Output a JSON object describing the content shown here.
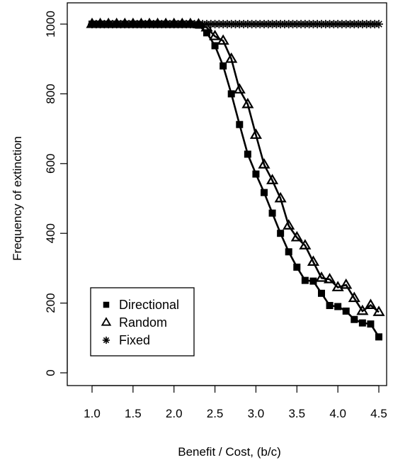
{
  "chart_data": {
    "type": "line",
    "title": "",
    "xlabel": "Benefit / Cost, (b/c)",
    "ylabel": "Frequency of extinction",
    "xlim": [
      0.95,
      4.55
    ],
    "ylim": [
      0,
      1000
    ],
    "x_ticks": [
      1.0,
      1.5,
      2.0,
      2.5,
      3.0,
      3.5,
      4.0,
      4.5
    ],
    "x_tick_labels": [
      "1.0",
      "1.5",
      "2.0",
      "2.5",
      "3.0",
      "3.5",
      "4.0",
      "4.5"
    ],
    "y_ticks": [
      0,
      200,
      400,
      600,
      800,
      1000
    ],
    "y_tick_labels": [
      "0",
      "200",
      "400",
      "600",
      "800",
      "1000"
    ],
    "grid": false,
    "legend_position": "bottom-left",
    "series": [
      {
        "name": "Directional",
        "marker": "filled-square",
        "x": [
          1.0,
          1.1,
          1.2,
          1.3,
          1.4,
          1.5,
          1.6,
          1.7,
          1.8,
          1.9,
          2.0,
          2.1,
          2.2,
          2.3,
          2.4,
          2.5,
          2.6,
          2.7,
          2.8,
          2.9,
          3.0,
          3.1,
          3.2,
          3.3,
          3.4,
          3.5,
          3.6,
          3.7,
          3.8,
          3.9,
          4.0,
          4.1,
          4.2,
          4.3,
          4.4,
          4.5
        ],
        "values": [
          1000,
          1000,
          1000,
          1000,
          1000,
          1000,
          1000,
          1000,
          1000,
          1000,
          1000,
          1000,
          1000,
          997,
          975,
          938,
          880,
          800,
          712,
          627,
          570,
          517,
          458,
          400,
          347,
          303,
          265,
          263,
          228,
          193,
          190,
          177,
          153,
          143,
          140,
          103
        ]
      },
      {
        "name": "Random",
        "marker": "open-triangle",
        "x": [
          1.0,
          1.1,
          1.2,
          1.3,
          1.4,
          1.5,
          1.6,
          1.7,
          1.8,
          1.9,
          2.0,
          2.1,
          2.2,
          2.3,
          2.4,
          2.5,
          2.6,
          2.7,
          2.8,
          2.9,
          3.0,
          3.1,
          3.2,
          3.3,
          3.4,
          3.5,
          3.6,
          3.7,
          3.8,
          3.9,
          4.0,
          4.1,
          4.2,
          4.3,
          4.4,
          4.5
        ],
        "values": [
          1000,
          1000,
          1000,
          1000,
          1000,
          1000,
          1000,
          1000,
          1000,
          1000,
          1000,
          1000,
          1000,
          999,
          990,
          965,
          952,
          900,
          812,
          770,
          682,
          597,
          552,
          500,
          422,
          388,
          365,
          318,
          272,
          268,
          245,
          252,
          214,
          177,
          194,
          174
        ]
      },
      {
        "name": "Fixed",
        "marker": "asterisk",
        "x": [
          1.0,
          1.05,
          1.1,
          1.15,
          1.2,
          1.25,
          1.3,
          1.35,
          1.4,
          1.45,
          1.5,
          1.55,
          1.6,
          1.65,
          1.7,
          1.75,
          1.8,
          1.85,
          1.9,
          1.95,
          2.0,
          2.05,
          2.1,
          2.15,
          2.2,
          2.25,
          2.3,
          2.35,
          2.4,
          2.45,
          2.5,
          2.55,
          2.6,
          2.65,
          2.7,
          2.75,
          2.8,
          2.85,
          2.9,
          2.95,
          3.0,
          3.05,
          3.1,
          3.15,
          3.2,
          3.25,
          3.3,
          3.35,
          3.4,
          3.45,
          3.5,
          3.55,
          3.6,
          3.65,
          3.7,
          3.75,
          3.8,
          3.85,
          3.9,
          3.95,
          4.0,
          4.05,
          4.1,
          4.15,
          4.2,
          4.25,
          4.3,
          4.35,
          4.4,
          4.45,
          4.5
        ],
        "values": [
          1000,
          1000,
          1000,
          1000,
          1000,
          1000,
          1000,
          1000,
          1000,
          1000,
          1000,
          1000,
          1000,
          1000,
          1000,
          1000,
          1000,
          1000,
          1000,
          1000,
          1000,
          1000,
          1000,
          1000,
          1000,
          1000,
          1000,
          1000,
          1000,
          1000,
          1000,
          1000,
          1000,
          1000,
          1000,
          1000,
          1000,
          1000,
          1000,
          1000,
          1000,
          1000,
          1000,
          1000,
          1000,
          1000,
          1000,
          1000,
          1000,
          1000,
          1000,
          1000,
          1000,
          1000,
          1000,
          1000,
          1000,
          1000,
          1000,
          1000,
          1000,
          1000,
          1000,
          1000,
          1000,
          1000,
          1000,
          1000,
          1000,
          1000,
          1000
        ]
      }
    ]
  }
}
